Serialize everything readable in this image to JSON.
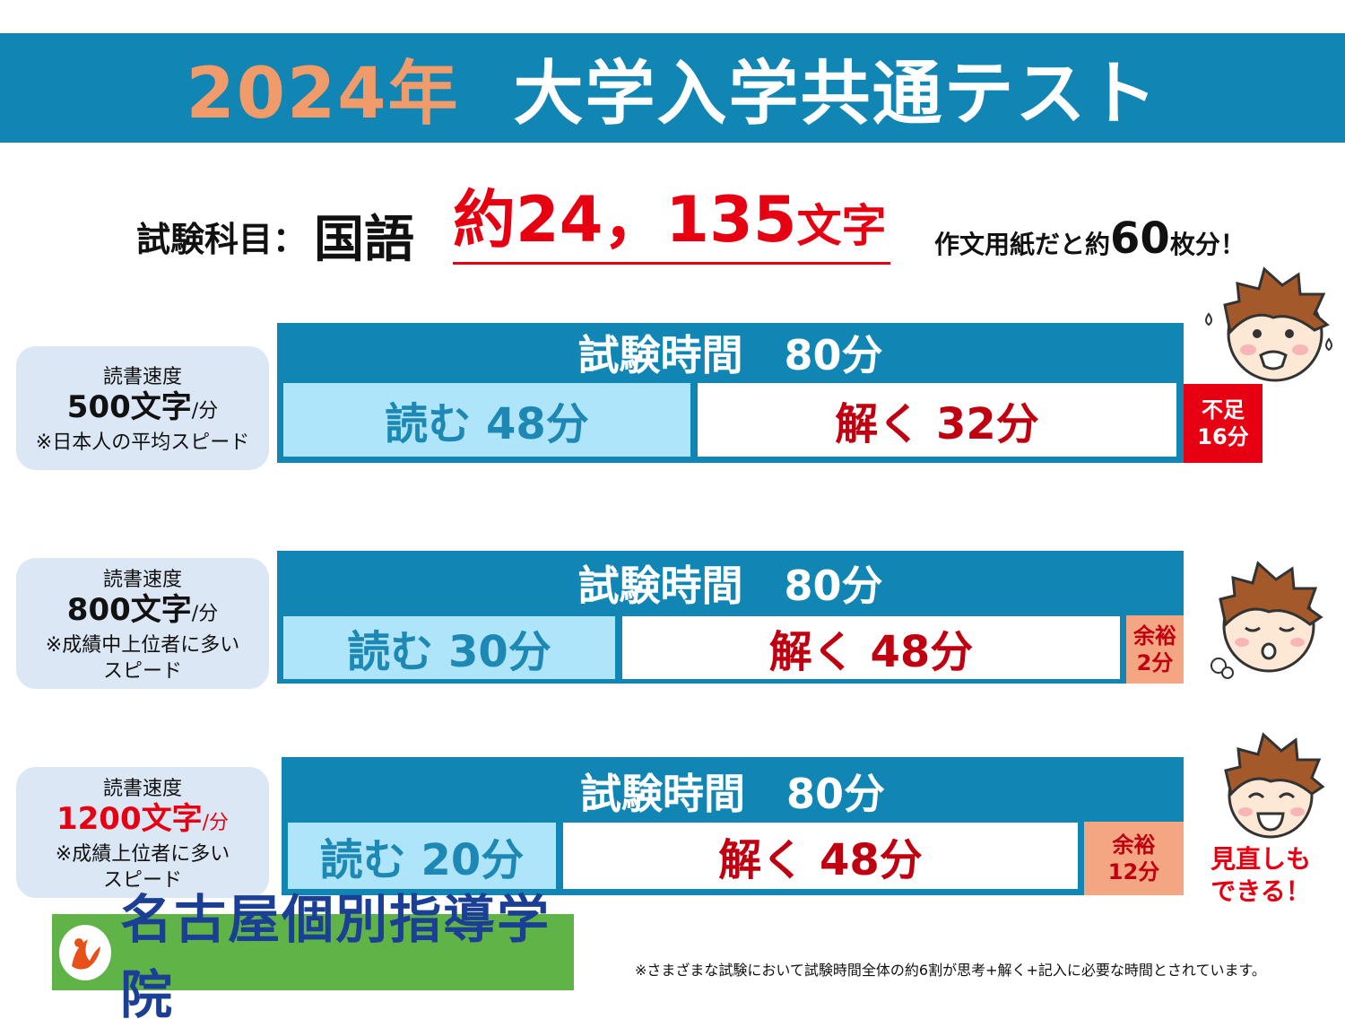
{
  "header": {
    "year": "2024年",
    "title": "大学入学共通テスト"
  },
  "subject": {
    "label": "試験科目：",
    "name": "国語",
    "count": "約24，135",
    "count_unit": "文字",
    "note_pre": "作文用紙だと約",
    "note_num": "60",
    "note_post": "枚分！"
  },
  "rows": [
    {
      "speed_label": "読書速度",
      "rate": "500文字",
      "per": "/分",
      "note": [
        "※日本人の平均スピード"
      ],
      "exam": "試験時間　80分",
      "read": "読む 48分",
      "solve": "解く 32分",
      "extra": [
        "不足",
        "16分"
      ]
    },
    {
      "speed_label": "読書速度",
      "rate": "800文字",
      "per": "/分",
      "note": [
        "※成績中上位者に多い",
        "スピード"
      ],
      "exam": "試験時間　80分",
      "read": "読む 30分",
      "solve": "解く 48分",
      "extra": [
        "余裕",
        "2分"
      ]
    },
    {
      "speed_label": "読書速度",
      "rate": "1200文字",
      "per": "/分",
      "note": [
        "※成績上位者に多い",
        "スピード"
      ],
      "exam": "試験時間　80分",
      "read": "読む 20分",
      "solve": "解く 48分",
      "extra": [
        "余裕",
        "12分"
      ]
    }
  ],
  "review_note": [
    "見直しも",
    "できる！"
  ],
  "logo": {
    "name": "名古屋個別指導学院"
  },
  "footnote": "※さまざまな試験において試験時間全体の約6割が思考+解く+記入に必要な時間とされています。",
  "colors": {
    "banner": "#1186b4",
    "accent_orange": "#f19a6a",
    "red": "#e60012",
    "read_fill": "#aee5fa",
    "spare_fill": "#f4a582",
    "logo_green": "#5fb347"
  }
}
